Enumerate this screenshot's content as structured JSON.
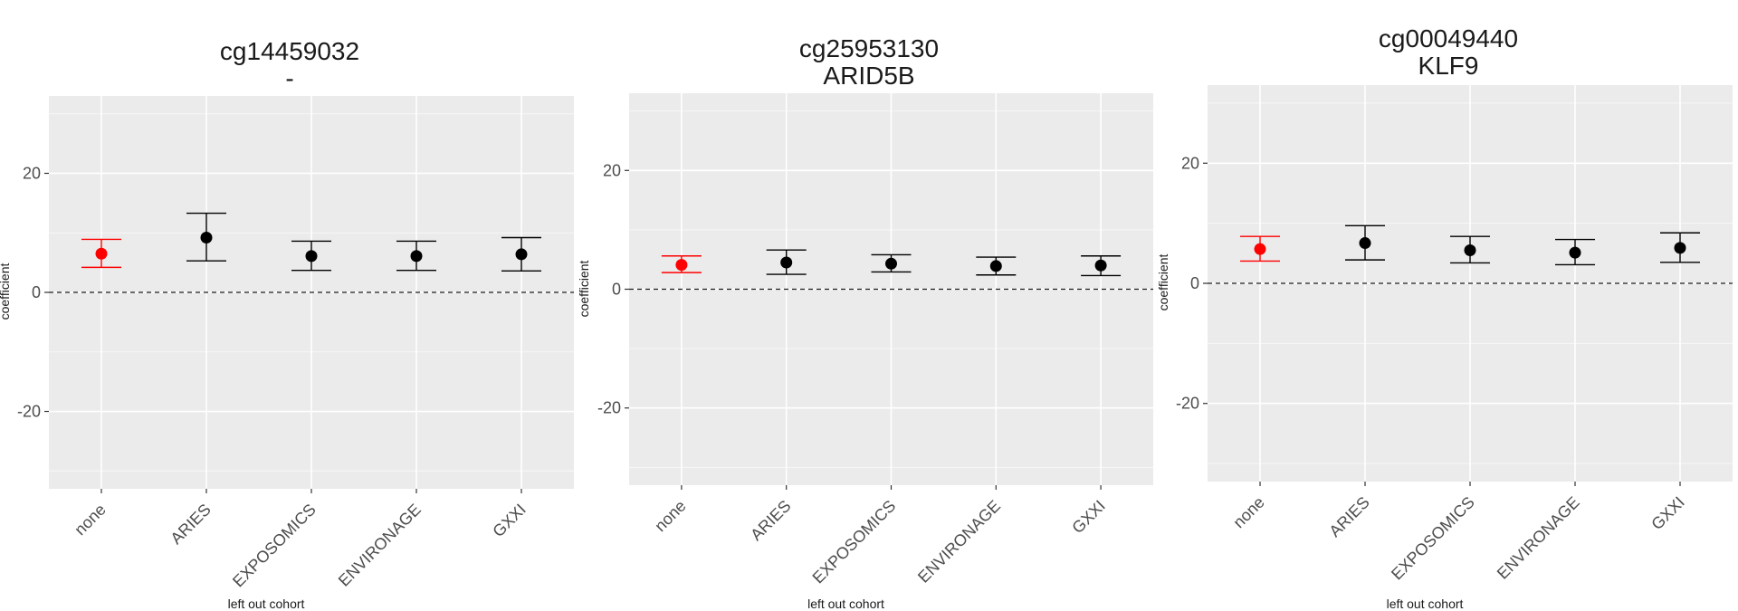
{
  "chart_data": [
    {
      "type": "scatter",
      "title": "cg14459032",
      "subtitle": "-",
      "xlabel": "left out cohort",
      "ylabel": "coefficient",
      "categories": [
        "none",
        "ARIES",
        "EXPOSOMICS",
        "ENVIRONAGE",
        "GXXI"
      ],
      "values": [
        6.5,
        9.2,
        6.1,
        6.1,
        6.4
      ],
      "ci_low": [
        4.2,
        5.3,
        3.7,
        3.7,
        3.6
      ],
      "ci_high": [
        8.9,
        13.3,
        8.6,
        8.6,
        9.2
      ],
      "point_colors": [
        "#ff0000",
        "#000000",
        "#000000",
        "#000000",
        "#000000"
      ],
      "yticks": [
        -20,
        0,
        20
      ],
      "ylim": [
        -33,
        33
      ],
      "reference_line": 0,
      "grid": true
    },
    {
      "type": "scatter",
      "title": "cg25953130",
      "subtitle": "ARID5B",
      "xlabel": "left out cohort",
      "ylabel": "coefficient",
      "categories": [
        "none",
        "ARIES",
        "EXPOSOMICS",
        "ENVIRONAGE",
        "GXXI"
      ],
      "values": [
        4.1,
        4.5,
        4.3,
        3.9,
        4.0
      ],
      "ci_low": [
        2.8,
        2.5,
        2.9,
        2.4,
        2.3
      ],
      "ci_high": [
        5.6,
        6.6,
        5.8,
        5.4,
        5.6
      ],
      "point_colors": [
        "#ff0000",
        "#000000",
        "#000000",
        "#000000",
        "#000000"
      ],
      "yticks": [
        -20,
        0,
        20
      ],
      "ylim": [
        -33,
        33
      ],
      "reference_line": 0,
      "grid": true
    },
    {
      "type": "scatter",
      "title": "cg00049440",
      "subtitle": "KLF9",
      "xlabel": "left out cohort",
      "ylabel": "coefficient",
      "categories": [
        "none",
        "ARIES",
        "EXPOSOMICS",
        "ENVIRONAGE",
        "GXXI"
      ],
      "values": [
        5.7,
        6.7,
        5.5,
        5.1,
        5.9
      ],
      "ci_low": [
        3.7,
        3.9,
        3.4,
        3.1,
        3.5
      ],
      "ci_high": [
        7.8,
        9.6,
        7.8,
        7.3,
        8.4
      ],
      "point_colors": [
        "#ff0000",
        "#000000",
        "#000000",
        "#000000",
        "#000000"
      ],
      "yticks": [
        -20,
        0,
        20
      ],
      "ylim": [
        -33,
        33
      ],
      "reference_line": 0,
      "grid": true
    }
  ]
}
